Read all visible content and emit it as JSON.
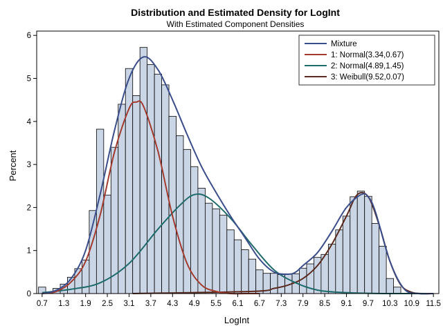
{
  "chart_data": {
    "type": "bar",
    "title": "Distribution and Estimated Density for LogInt",
    "subtitle": "With Estimated Component Densities",
    "xlabel": "LogInt",
    "ylabel": "Percent",
    "xlim": [
      0.55,
      11.65
    ],
    "ylim": [
      0,
      6.1
    ],
    "x_ticks": [
      "0.7",
      "1.3",
      "1.9",
      "2.5",
      "3.1",
      "3.7",
      "4.3",
      "4.9",
      "5.5",
      "6.1",
      "6.7",
      "7.3",
      "7.9",
      "8.5",
      "9.1",
      "9.7",
      "10.3",
      "10.9",
      "11.5"
    ],
    "y_ticks": [
      "0",
      "1",
      "2",
      "3",
      "4",
      "5",
      "6"
    ],
    "bin_width": 0.2,
    "bins": [
      [
        0.7,
        0.15
      ],
      [
        0.9,
        0.03
      ],
      [
        1.1,
        0.12
      ],
      [
        1.3,
        0.22
      ],
      [
        1.5,
        0.38
      ],
      [
        1.7,
        0.58
      ],
      [
        1.9,
        0.78
      ],
      [
        2.1,
        1.93
      ],
      [
        2.3,
        3.82
      ],
      [
        2.5,
        2.29
      ],
      [
        2.7,
        3.4
      ],
      [
        2.9,
        4.4
      ],
      [
        3.1,
        5.23
      ],
      [
        3.3,
        4.6
      ],
      [
        3.5,
        5.72
      ],
      [
        3.7,
        5.32
      ],
      [
        3.9,
        5.1
      ],
      [
        4.1,
        4.85
      ],
      [
        4.3,
        4.12
      ],
      [
        4.5,
        3.67
      ],
      [
        4.7,
        3.35
      ],
      [
        4.9,
        2.95
      ],
      [
        5.1,
        2.45
      ],
      [
        5.3,
        2.1
      ],
      [
        5.5,
        1.97
      ],
      [
        5.7,
        1.82
      ],
      [
        5.9,
        1.48
      ],
      [
        6.1,
        1.25
      ],
      [
        6.3,
        1.02
      ],
      [
        6.5,
        0.8
      ],
      [
        6.7,
        0.55
      ],
      [
        6.9,
        0.47
      ],
      [
        7.1,
        0.47
      ],
      [
        7.3,
        0.44
      ],
      [
        7.5,
        0.46
      ],
      [
        7.7,
        0.46
      ],
      [
        7.9,
        0.59
      ],
      [
        8.1,
        0.69
      ],
      [
        8.3,
        0.84
      ],
      [
        8.5,
        0.91
      ],
      [
        8.7,
        1.15
      ],
      [
        8.9,
        1.48
      ],
      [
        9.1,
        1.8
      ],
      [
        9.3,
        2.25
      ],
      [
        9.5,
        2.38
      ],
      [
        9.7,
        2.26
      ],
      [
        9.9,
        1.63
      ],
      [
        10.1,
        1.1
      ],
      [
        10.3,
        0.35
      ],
      [
        10.5,
        0.15
      ]
    ],
    "bar_fill": "#cad5e5",
    "bar_stroke": "#000000",
    "series": [
      {
        "name": "Mixture",
        "color": "#3a4d8b",
        "x": [
          0.7,
          1.1,
          1.5,
          1.9,
          2.3,
          2.7,
          3.1,
          3.5,
          3.9,
          4.3,
          4.7,
          5.1,
          5.5,
          5.9,
          6.3,
          6.7,
          7.1,
          7.5,
          7.7,
          7.9,
          8.3,
          8.7,
          9.1,
          9.5,
          9.7,
          9.9,
          10.3,
          10.7,
          11.1,
          11.5
        ],
        "y": [
          0.0,
          0.08,
          0.35,
          1.0,
          2.3,
          3.8,
          5.0,
          5.5,
          5.2,
          4.5,
          3.7,
          2.95,
          2.35,
          1.8,
          1.3,
          0.8,
          0.5,
          0.45,
          0.5,
          0.65,
          0.95,
          1.45,
          2.0,
          2.3,
          2.25,
          1.9,
          0.75,
          0.1,
          0.0,
          0.0
        ]
      },
      {
        "name": "1: Normal(3.34,0.67)",
        "color": "#a23a2e",
        "x": [
          0.7,
          1.1,
          1.5,
          1.9,
          2.3,
          2.7,
          3.1,
          3.3,
          3.5,
          3.9,
          4.3,
          4.7,
          5.1,
          5.5,
          5.9,
          6.3,
          6.7
        ],
        "y": [
          0.0,
          0.05,
          0.27,
          0.75,
          1.82,
          3.3,
          4.3,
          4.45,
          4.35,
          3.3,
          1.8,
          0.7,
          0.2,
          0.05,
          0.0,
          0.0,
          0.0
        ]
      },
      {
        "name": "2: Normal(4.89,1.45)",
        "color": "#1e6b6b",
        "x": [
          0.7,
          1.5,
          2.3,
          3.1,
          3.9,
          4.5,
          4.9,
          5.3,
          5.9,
          6.5,
          7.1,
          7.7,
          8.3,
          8.9,
          9.5,
          10.1,
          10.7,
          11.3
        ],
        "y": [
          0.02,
          0.1,
          0.25,
          0.7,
          1.5,
          2.05,
          2.3,
          2.22,
          1.75,
          1.12,
          0.55,
          0.25,
          0.08,
          0.03,
          0.01,
          0.0,
          0.0,
          0.0
        ]
      },
      {
        "name": "3: Weibull(9.52,0.07)",
        "color": "#5a2a1e",
        "x": [
          3.2,
          6.5,
          7.1,
          7.5,
          7.9,
          8.3,
          8.7,
          9.1,
          9.4,
          9.7,
          10.0,
          10.3,
          10.6,
          10.9,
          11.2,
          11.5
        ],
        "y": [
          0.0,
          0.05,
          0.12,
          0.2,
          0.35,
          0.65,
          1.15,
          1.8,
          2.3,
          2.25,
          1.6,
          0.75,
          0.2,
          0.03,
          0.0,
          0.0
        ]
      }
    ],
    "legend_position": "top-right",
    "grid": false
  }
}
